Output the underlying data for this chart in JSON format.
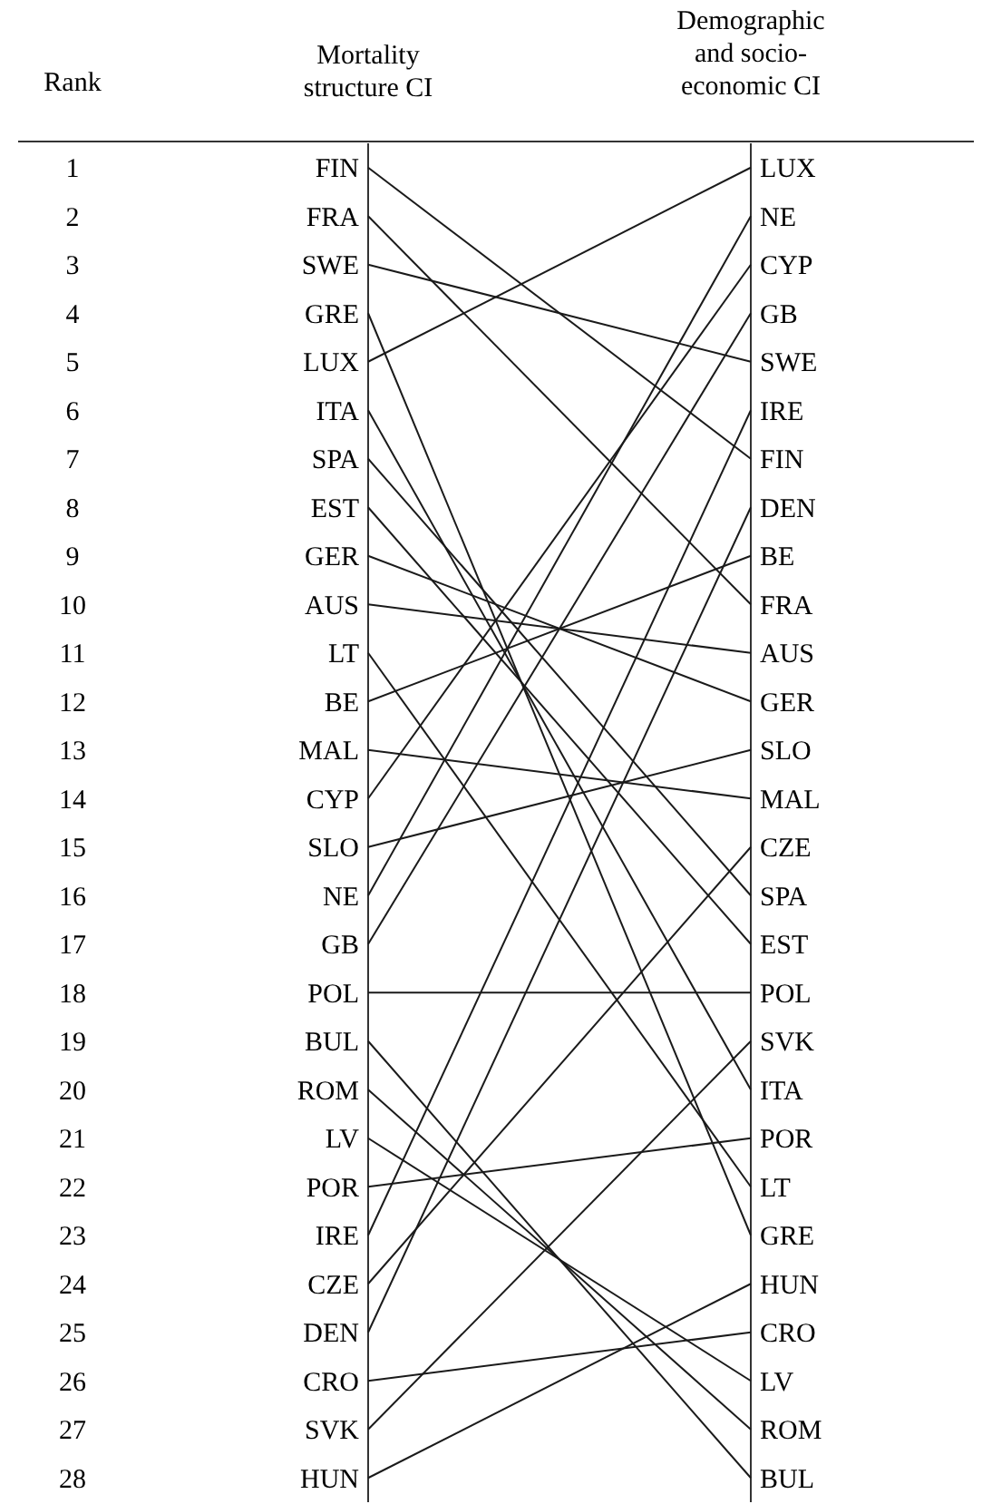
{
  "chart_data": {
    "type": "line",
    "ylabel": "Rank",
    "categories": [
      "Mortality structure CI",
      "Demographic and socio-economic CI"
    ],
    "ylim": [
      28.5,
      0.5
    ],
    "yticks": [
      1,
      2,
      3,
      4,
      5,
      6,
      7,
      8,
      9,
      10,
      11,
      12,
      13,
      14,
      15,
      16,
      17,
      18,
      19,
      20,
      21,
      22,
      23,
      24,
      25,
      26,
      27,
      28
    ],
    "grid": "x",
    "marker": "none",
    "line_style": "solid",
    "series": [
      {
        "name": "FIN",
        "color": "#1a1a1a",
        "values": [
          1,
          7
        ]
      },
      {
        "name": "FRA",
        "color": "#1a1a1a",
        "values": [
          2,
          10
        ]
      },
      {
        "name": "SWE",
        "color": "#1a1a1a",
        "values": [
          3,
          5
        ]
      },
      {
        "name": "GRE",
        "color": "#1a1a1a",
        "values": [
          4,
          23
        ]
      },
      {
        "name": "LUX",
        "color": "#1a1a1a",
        "values": [
          5,
          1
        ]
      },
      {
        "name": "ITA",
        "color": "#1a1a1a",
        "values": [
          6,
          20
        ]
      },
      {
        "name": "SPA",
        "color": "#1a1a1a",
        "values": [
          7,
          16
        ]
      },
      {
        "name": "EST",
        "color": "#1a1a1a",
        "values": [
          8,
          17
        ]
      },
      {
        "name": "GER",
        "color": "#1a1a1a",
        "values": [
          9,
          12
        ]
      },
      {
        "name": "AUS",
        "color": "#1a1a1a",
        "values": [
          10,
          11
        ]
      },
      {
        "name": "LT",
        "color": "#1a1a1a",
        "values": [
          11,
          22
        ]
      },
      {
        "name": "BE",
        "color": "#1a1a1a",
        "values": [
          12,
          9
        ]
      },
      {
        "name": "MAL",
        "color": "#1a1a1a",
        "values": [
          13,
          14
        ]
      },
      {
        "name": "CYP",
        "color": "#1a1a1a",
        "values": [
          14,
          3
        ]
      },
      {
        "name": "SLO",
        "color": "#1a1a1a",
        "values": [
          15,
          13
        ]
      },
      {
        "name": "NE",
        "color": "#1a1a1a",
        "values": [
          16,
          2
        ]
      },
      {
        "name": "GB",
        "color": "#1a1a1a",
        "values": [
          17,
          4
        ]
      },
      {
        "name": "POL",
        "color": "#1a1a1a",
        "values": [
          18,
          18
        ]
      },
      {
        "name": "BUL",
        "color": "#1a1a1a",
        "values": [
          19,
          28
        ]
      },
      {
        "name": "ROM",
        "color": "#1a1a1a",
        "values": [
          20,
          27
        ]
      },
      {
        "name": "LV",
        "color": "#1a1a1a",
        "values": [
          21,
          26
        ]
      },
      {
        "name": "POR",
        "color": "#1a1a1a",
        "values": [
          22,
          21
        ]
      },
      {
        "name": "IRE",
        "color": "#1a1a1a",
        "values": [
          23,
          6
        ]
      },
      {
        "name": "CZE",
        "color": "#1a1a1a",
        "values": [
          24,
          15
        ]
      },
      {
        "name": "DEN",
        "color": "#1a1a1a",
        "values": [
          25,
          8
        ]
      },
      {
        "name": "CRO",
        "color": "#1a1a1a",
        "values": [
          26,
          25
        ]
      },
      {
        "name": "SVK",
        "color": "#1a1a1a",
        "values": [
          27,
          19
        ]
      },
      {
        "name": "HUN",
        "color": "#1a1a1a",
        "values": [
          28,
          24
        ]
      }
    ]
  }
}
